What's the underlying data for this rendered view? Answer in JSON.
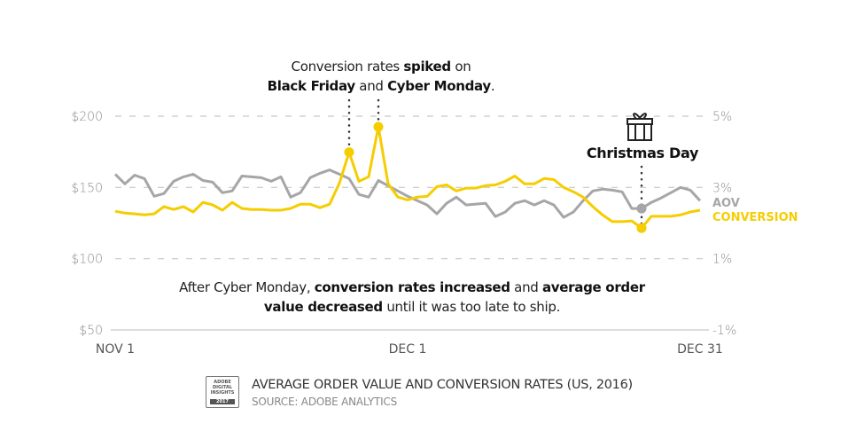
{
  "chart_data": {
    "type": "line",
    "title": "AVERAGE ORDER VALUE AND CONVERSION RATES (US, 2016)",
    "source": "SOURCE: ADOBE ANALYTICS",
    "badge": {
      "line1": "ADOBE",
      "line2": "DIGITAL",
      "line3": "INSIGHTS",
      "year": "2017"
    },
    "x_days": 61,
    "x_ticks": [
      {
        "day": 0,
        "label": "NOV 1"
      },
      {
        "day": 30,
        "label": "DEC 1"
      },
      {
        "day": 60,
        "label": "DEC 31"
      }
    ],
    "y_left": {
      "range": [
        50,
        200
      ],
      "ticks": [
        {
          "v": 200,
          "label": "$200"
        },
        {
          "v": 150,
          "label": "$150"
        },
        {
          "v": 100,
          "label": "$100"
        },
        {
          "v": 50,
          "label": "$50"
        }
      ]
    },
    "y_right": {
      "range": [
        -1,
        5
      ],
      "ticks": [
        {
          "v": 5,
          "label": "5%"
        },
        {
          "v": 3,
          "label": "3%"
        },
        {
          "v": 1,
          "label": "1%"
        },
        {
          "v": -1,
          "label": "-1%"
        }
      ]
    },
    "grid": true,
    "series": [
      {
        "name": "AOV",
        "axis": "left",
        "color": "#a6a6a8",
        "values": [
          159.3,
          152.5,
          158.6,
          156.2,
          143.8,
          145.7,
          154.3,
          157.4,
          159.3,
          154.9,
          153.7,
          146.3,
          147.5,
          158.0,
          157.4,
          156.8,
          154.3,
          157.4,
          143.2,
          146.3,
          156.8,
          159.9,
          162.3,
          159.3,
          156.2,
          145.1,
          143.2,
          154.9,
          151.2,
          147.5,
          143.8,
          140.7,
          137.7,
          131.5,
          138.9,
          143.2,
          137.7,
          138.3,
          138.9,
          129.6,
          132.7,
          138.9,
          140.7,
          137.7,
          140.7,
          137.7,
          129.0,
          132.7,
          140.7,
          147.5,
          148.8,
          148.1,
          146.9,
          135.2,
          135.2,
          139.5,
          142.6,
          146.3,
          150.0,
          148.1,
          140.7
        ]
      },
      {
        "name": "CONVERSION",
        "axis": "right",
        "color": "#f5cd00",
        "values": [
          2.33,
          2.28,
          2.26,
          2.23,
          2.26,
          2.46,
          2.38,
          2.46,
          2.31,
          2.58,
          2.51,
          2.36,
          2.58,
          2.41,
          2.38,
          2.38,
          2.36,
          2.36,
          2.41,
          2.53,
          2.53,
          2.43,
          2.53,
          3.12,
          3.99,
          3.17,
          3.3,
          4.7,
          3.1,
          2.73,
          2.65,
          2.73,
          2.75,
          3.02,
          3.07,
          2.9,
          2.98,
          2.98,
          3.05,
          3.07,
          3.17,
          3.32,
          3.1,
          3.1,
          3.25,
          3.22,
          3.0,
          2.88,
          2.73,
          2.46,
          2.23,
          2.04,
          2.04,
          2.06,
          1.86,
          2.19,
          2.19,
          2.19,
          2.23,
          2.31,
          2.36
        ]
      }
    ],
    "legend": [
      {
        "label": "AOV",
        "color": "#a6a6a8"
      },
      {
        "label": "CONVERSION",
        "color": "#f5cd00"
      }
    ],
    "legend_placement": "right",
    "markers": [
      {
        "series": "CONVERSION",
        "day": 24,
        "label": "Black Friday"
      },
      {
        "series": "CONVERSION",
        "day": 27,
        "label": "Cyber Monday"
      },
      {
        "series": "AOV",
        "day": 54,
        "label": "Christmas Day"
      },
      {
        "series": "CONVERSION",
        "day": 54,
        "label": "Christmas Day"
      }
    ],
    "annotations": {
      "top": {
        "p1": "Conversion rates ",
        "b1": "spiked",
        "p2": " on",
        "b2": "Black Friday",
        "p3": " and ",
        "b3": "Cyber Monday",
        "p4": "."
      },
      "christmas": "Christmas Day",
      "bottom": {
        "p1": "After Cyber Monday, ",
        "b1": "conversion rates increased",
        "p2": " and ",
        "b2": "average order",
        "b3": "value decreased",
        "p3": " until it was too late to ship."
      }
    }
  }
}
